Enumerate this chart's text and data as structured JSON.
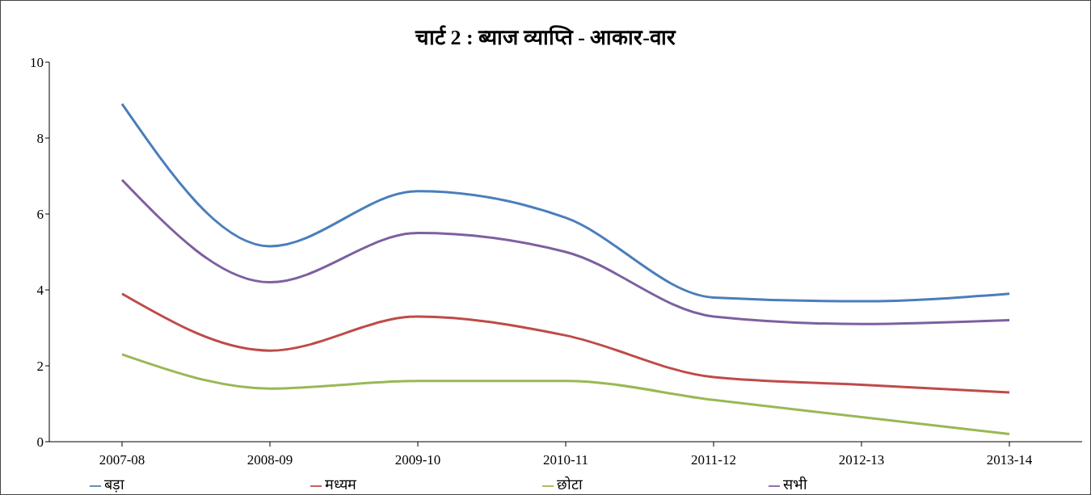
{
  "chart_data": {
    "type": "line",
    "title": "चार्ट 2 : ब्याज व्याप्ति - आकार-वार",
    "categories": [
      "2007-08",
      "2008-09",
      "2009-10",
      "2010-11",
      "2011-12",
      "2012-13",
      "2013-14"
    ],
    "series": [
      {
        "name": "बड़ा",
        "color": "#4a7ebb",
        "values": [
          8.9,
          5.15,
          6.6,
          5.9,
          3.8,
          3.7,
          3.9
        ]
      },
      {
        "name": "मध्यम",
        "color": "#be4b48",
        "values": [
          3.9,
          2.4,
          3.3,
          2.8,
          1.7,
          1.5,
          1.3
        ]
      },
      {
        "name": "छोटा",
        "color": "#98b954",
        "values": [
          2.3,
          1.4,
          1.6,
          1.6,
          1.1,
          0.65,
          0.2
        ]
      },
      {
        "name": "सभी",
        "color": "#7d60a0",
        "values": [
          6.9,
          4.2,
          5.5,
          5.0,
          3.3,
          3.1,
          3.2
        ]
      }
    ],
    "ylim": [
      0,
      10
    ],
    "yticks": [
      0,
      2,
      4,
      6,
      8,
      10
    ],
    "grid": false,
    "legend": "bottom",
    "marker": "none",
    "line_style": "solid"
  }
}
